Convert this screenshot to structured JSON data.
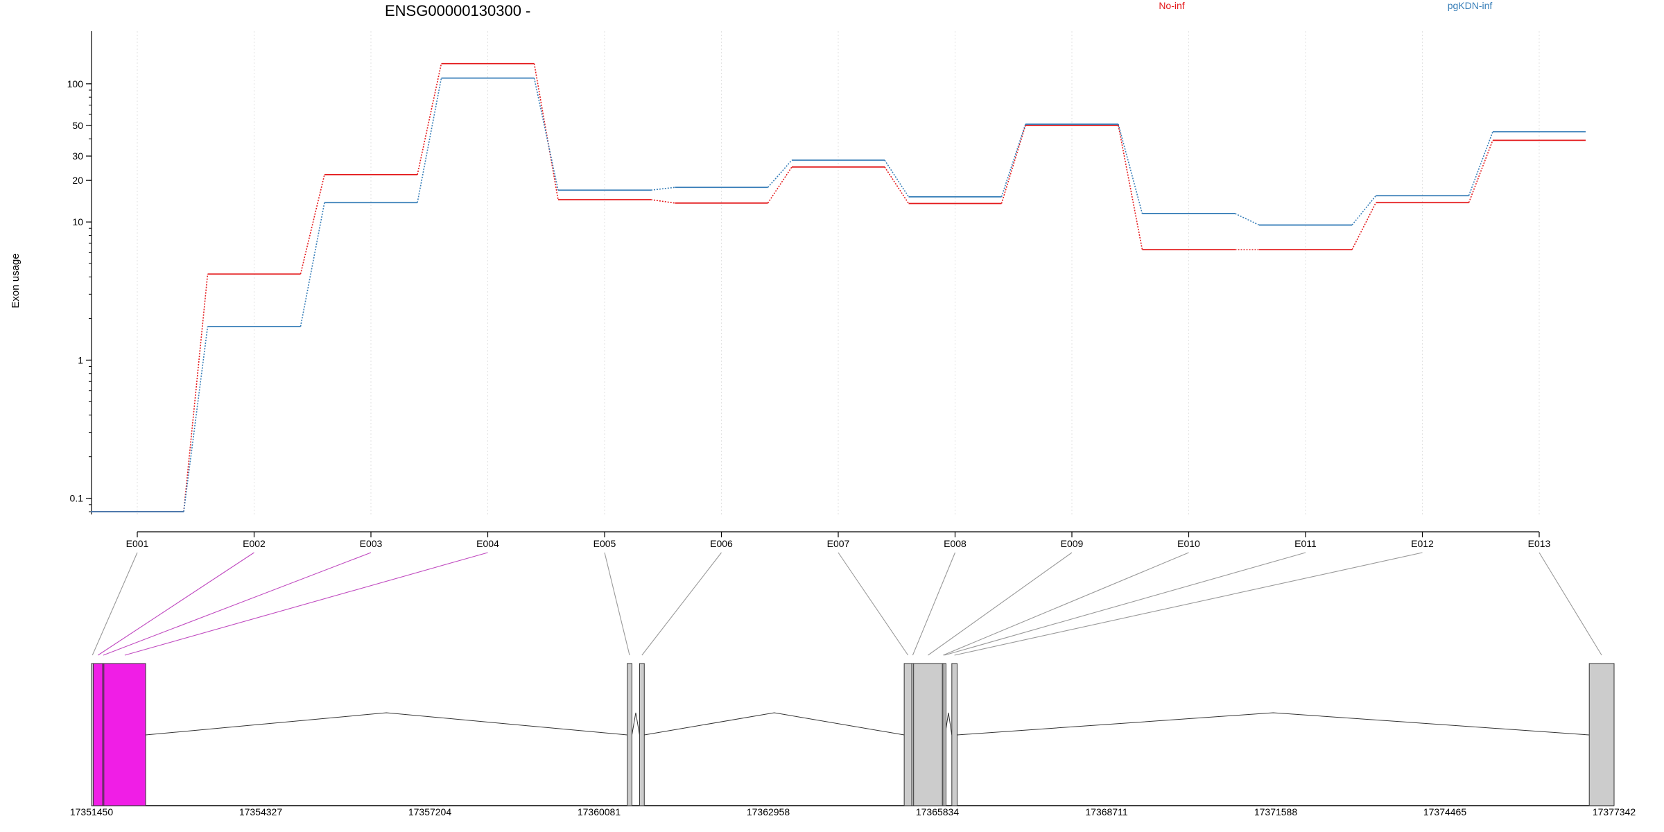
{
  "chart_data": {
    "type": "line",
    "title": "ENSG00000130300 -",
    "ylabel": "Exon usage",
    "xlabel": "",
    "y_scale": "log",
    "ylim": [
      0.08,
      180
    ],
    "y_ticks": [
      {
        "value": 0.1,
        "label": "0.1"
      },
      {
        "value": 1,
        "label": "1"
      },
      {
        "value": 10,
        "label": "10"
      },
      {
        "value": 20,
        "label": "20"
      },
      {
        "value": 30,
        "label": "30"
      },
      {
        "value": 50,
        "label": "50"
      },
      {
        "value": 100,
        "label": "100"
      }
    ],
    "categories": [
      "E001",
      "E002",
      "E003",
      "E004",
      "E005",
      "E006",
      "E007",
      "E008",
      "E009",
      "E010",
      "E011",
      "E012",
      "E013"
    ],
    "series": [
      {
        "name": "No-inf",
        "color": "#e41a1c",
        "values": [
          0.08,
          4.2,
          22,
          140,
          14.5,
          13.7,
          25,
          13.6,
          50,
          6.3,
          6.3,
          13.8,
          39
        ]
      },
      {
        "name": "pgKDN-inf",
        "color": "#377eb8",
        "values": [
          0.08,
          1.75,
          13.8,
          110,
          17,
          17.8,
          28,
          15.2,
          51,
          11.5,
          9.5,
          15.5,
          45
        ]
      }
    ],
    "grid": "vertical-dotted",
    "legend_position": "top",
    "gene_model": {
      "coordinate_ticks": [
        "17351450",
        "17354327",
        "17357204",
        "17360081",
        "17362958",
        "17365834",
        "17368711",
        "17371588",
        "17374465",
        "17377342"
      ],
      "coord_range": [
        17351450,
        17377342
      ],
      "exons": [
        {
          "id": "E001",
          "start": 17351450,
          "end": 17351480,
          "highlight": false
        },
        {
          "id": "E002",
          "start": 17351480,
          "end": 17351640,
          "highlight": true
        },
        {
          "id": "E003",
          "start": 17351640,
          "end": 17351660,
          "highlight": true
        },
        {
          "id": "E004",
          "start": 17351660,
          "end": 17352370,
          "highlight": true
        },
        {
          "id": "E005",
          "start": 17360560,
          "end": 17360640,
          "highlight": false
        },
        {
          "id": "E006",
          "start": 17360770,
          "end": 17360850,
          "highlight": false
        },
        {
          "id": "E007",
          "start": 17365270,
          "end": 17365400,
          "highlight": false
        },
        {
          "id": "E008",
          "start": 17365400,
          "end": 17365430,
          "highlight": false
        },
        {
          "id": "E009",
          "start": 17365430,
          "end": 17365920,
          "highlight": false
        },
        {
          "id": "E010",
          "start": 17365920,
          "end": 17365945,
          "highlight": false
        },
        {
          "id": "E011",
          "start": 17365945,
          "end": 17365965,
          "highlight": false
        },
        {
          "id": "E012",
          "start": 17366080,
          "end": 17366170,
          "highlight": false
        },
        {
          "id": "E013",
          "start": 17376920,
          "end": 17377342,
          "highlight": false
        }
      ],
      "exon_color": "#cccccc",
      "highlight_color": "#f01ee6"
    }
  }
}
